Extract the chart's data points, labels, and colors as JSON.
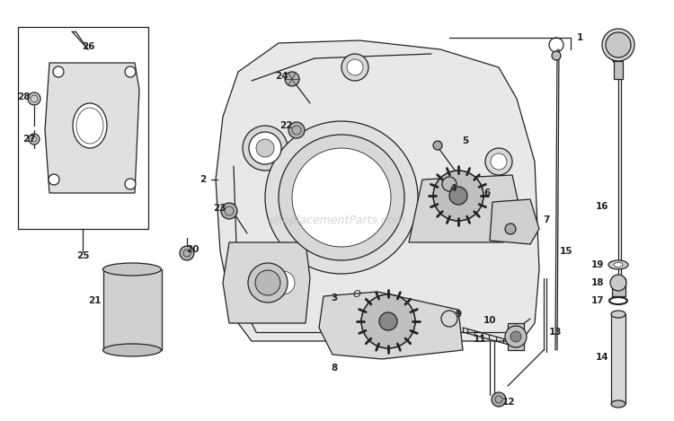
{
  "bg_color": "#ffffff",
  "fig_width": 7.5,
  "fig_height": 4.69,
  "watermark": "eReplacementParts.com",
  "watermark_color": "#bbbbbb",
  "line_color": "#222222",
  "label_fontsize": 7.5
}
